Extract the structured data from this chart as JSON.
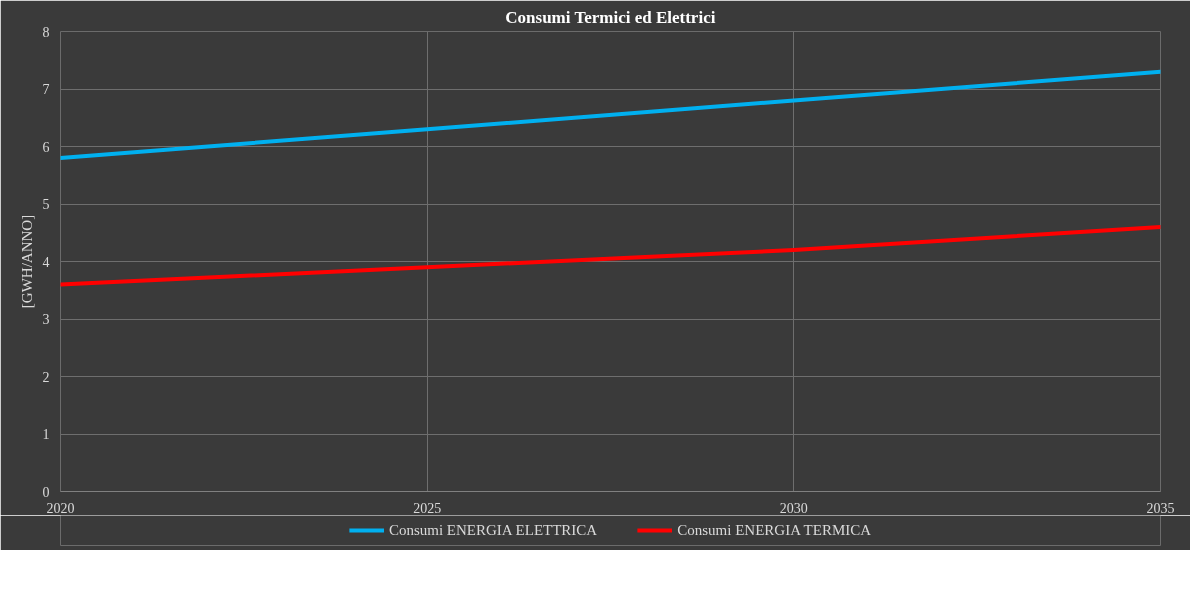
{
  "chart_data": {
    "type": "line",
    "title": "Consumi Termici ed Elettrici",
    "ylabel": "[GWH/ANNO]",
    "x": [
      2020,
      2025,
      2030,
      2035
    ],
    "series": [
      {
        "name": "Consumi ENERGIA ELETTRICA",
        "color": "#00b0f0",
        "values": [
          5.8,
          6.3,
          6.8,
          7.3
        ]
      },
      {
        "name": "Consumi ENERGIA TERMICA",
        "color": "#ff0000",
        "values": [
          3.6,
          3.9,
          4.2,
          4.6
        ]
      }
    ],
    "xlim": [
      2020,
      2035
    ],
    "xticks": [
      2020,
      2025,
      2030,
      2035
    ],
    "ylim": [
      0,
      8
    ],
    "yticks": [
      0,
      1,
      2,
      3,
      4,
      5,
      6,
      7,
      8
    ],
    "grid": true,
    "legend": "bottom",
    "marker": "none",
    "line_style": "solid"
  }
}
